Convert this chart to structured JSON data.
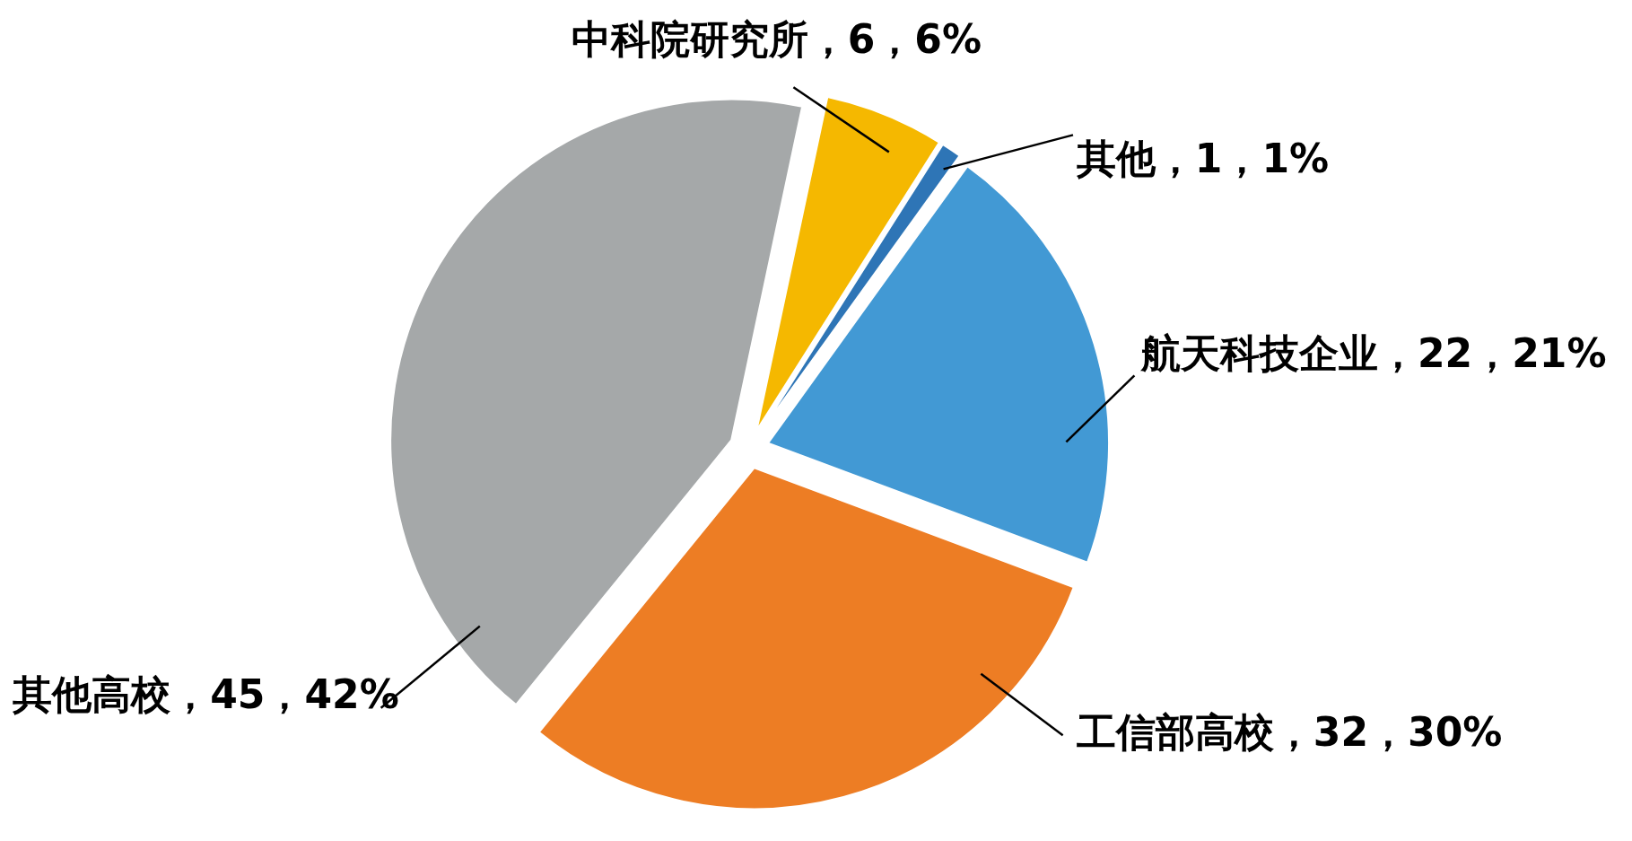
{
  "chart_data": {
    "type": "pie",
    "categories": [
      "中科院研究所",
      "其他",
      "航天科技企业",
      "工信部高校",
      "其他高校"
    ],
    "values": [
      6,
      1,
      22,
      32,
      45
    ],
    "value_labels": [
      "6，6%",
      "1，1%",
      "22，21%",
      "32，30%",
      "45，42%"
    ],
    "colors": [
      "#f5b800",
      "#2e75b6",
      "#4299d4",
      "#ed7d24",
      "#a5a8a9"
    ],
    "legend": false
  }
}
